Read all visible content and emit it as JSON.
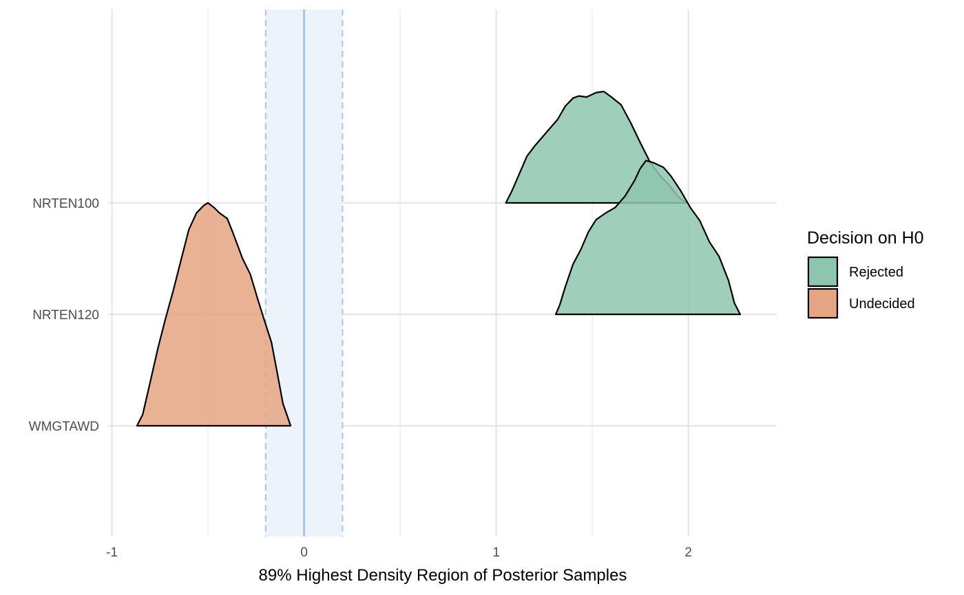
{
  "chart_data": {
    "type": "density-ridges",
    "xlabel": "89% Highest Density Region of Posterior Samples",
    "ylabel": "",
    "xlim": [
      -1.02,
      2.46
    ],
    "x_ticks": [
      "-1",
      "0",
      "1",
      "2"
    ],
    "x_tick_values": [
      -1,
      0,
      1,
      2
    ],
    "categories": [
      "NRTEN100",
      "NRTEN120",
      "WMGTAWD"
    ],
    "rope": {
      "low": -0.2,
      "high": 0.2,
      "center": 0,
      "fill_color": "#edf3fb",
      "line_color": "#a7c4e8"
    },
    "legend": {
      "title": "Decision on H0",
      "position": "right",
      "items": [
        {
          "label": "Rejected",
          "color": "#8ec5ae"
        },
        {
          "label": "Undecided",
          "color": "#e5a483"
        }
      ]
    },
    "series": [
      {
        "category": "NRTEN100",
        "decision": "Rejected",
        "outline": [
          [
            1.05,
            0.0
          ],
          [
            1.08,
            0.1
          ],
          [
            1.12,
            0.26
          ],
          [
            1.16,
            0.42
          ],
          [
            1.2,
            0.51
          ],
          [
            1.26,
            0.63
          ],
          [
            1.32,
            0.75
          ],
          [
            1.36,
            0.87
          ],
          [
            1.4,
            0.94
          ],
          [
            1.43,
            0.96
          ],
          [
            1.47,
            0.95
          ],
          [
            1.52,
            0.99
          ],
          [
            1.56,
            1.0
          ],
          [
            1.6,
            0.95
          ],
          [
            1.65,
            0.88
          ],
          [
            1.7,
            0.72
          ],
          [
            1.75,
            0.54
          ],
          [
            1.8,
            0.37
          ],
          [
            1.85,
            0.25
          ],
          [
            1.9,
            0.16
          ],
          [
            1.95,
            0.05
          ],
          [
            1.99,
            0.0
          ]
        ]
      },
      {
        "category": "NRTEN120",
        "decision": "Rejected",
        "outline": [
          [
            1.31,
            0.0
          ],
          [
            1.33,
            0.08
          ],
          [
            1.36,
            0.25
          ],
          [
            1.4,
            0.45
          ],
          [
            1.44,
            0.58
          ],
          [
            1.48,
            0.74
          ],
          [
            1.52,
            0.85
          ],
          [
            1.57,
            0.91
          ],
          [
            1.62,
            0.96
          ],
          [
            1.67,
            1.06
          ],
          [
            1.72,
            1.2
          ],
          [
            1.75,
            1.31
          ],
          [
            1.78,
            1.38
          ],
          [
            1.82,
            1.36
          ],
          [
            1.87,
            1.32
          ],
          [
            1.91,
            1.24
          ],
          [
            1.96,
            1.11
          ],
          [
            2.01,
            0.96
          ],
          [
            2.06,
            0.84
          ],
          [
            2.11,
            0.65
          ],
          [
            2.16,
            0.52
          ],
          [
            2.21,
            0.3
          ],
          [
            2.24,
            0.1
          ],
          [
            2.27,
            0.0
          ]
        ]
      },
      {
        "category": "WMGTAWD",
        "decision": "Undecided",
        "outline": [
          [
            -0.87,
            0.0
          ],
          [
            -0.84,
            0.1
          ],
          [
            -0.8,
            0.4
          ],
          [
            -0.76,
            0.7
          ],
          [
            -0.72,
            0.97
          ],
          [
            -0.68,
            1.22
          ],
          [
            -0.64,
            1.49
          ],
          [
            -0.6,
            1.76
          ],
          [
            -0.56,
            1.91
          ],
          [
            -0.52,
            1.98
          ],
          [
            -0.5,
            2.0
          ],
          [
            -0.47,
            1.96
          ],
          [
            -0.44,
            1.91
          ],
          [
            -0.4,
            1.86
          ],
          [
            -0.37,
            1.73
          ],
          [
            -0.32,
            1.5
          ],
          [
            -0.28,
            1.36
          ],
          [
            -0.24,
            1.13
          ],
          [
            -0.2,
            0.91
          ],
          [
            -0.17,
            0.75
          ],
          [
            -0.14,
            0.48
          ],
          [
            -0.11,
            0.2
          ],
          [
            -0.07,
            0.0
          ]
        ]
      }
    ]
  }
}
